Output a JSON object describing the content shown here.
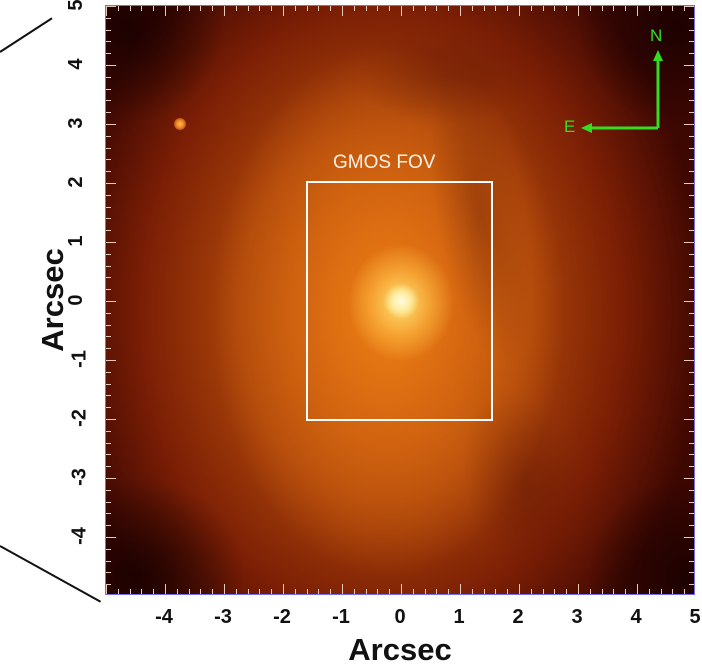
{
  "chart_data": {
    "type": "heatmap",
    "title": "",
    "xlabel": "Arcsec",
    "ylabel": "Arcsec",
    "xlim": [
      -5,
      5
    ],
    "ylim": [
      -5,
      5
    ],
    "x_ticks": [
      "-4",
      "-3",
      "-2",
      "-1",
      "0",
      "1",
      "2",
      "3",
      "4",
      "5"
    ],
    "y_ticks": [
      "5",
      "4",
      "3",
      "2",
      "1",
      "0",
      "-1",
      "-2",
      "-3",
      "-4"
    ],
    "colormap": "heat (black-red-orange-yellow-white)",
    "peak_position": [
      0,
      0
    ],
    "annotations": [
      {
        "type": "rectangle",
        "label": "GMOS FOV",
        "x_range": [
          -1.6,
          1.55
        ],
        "y_range": [
          -2.0,
          2.05
        ],
        "color": "#ffffff"
      },
      {
        "type": "point_source",
        "x": -3.75,
        "y": 3.05
      },
      {
        "type": "compass",
        "north_label": "N",
        "east_label": "E",
        "color": "#33dd22"
      }
    ],
    "grid": false,
    "legend": null
  },
  "labels": {
    "fov": "GMOS FOV",
    "north": "N",
    "east": "E",
    "xlabel": "Arcsec",
    "ylabel": "Arcsec"
  },
  "colors": {
    "axis_frame": "#6f6ff0",
    "compass": "#33dd22",
    "fov_box": "#ffffff"
  }
}
